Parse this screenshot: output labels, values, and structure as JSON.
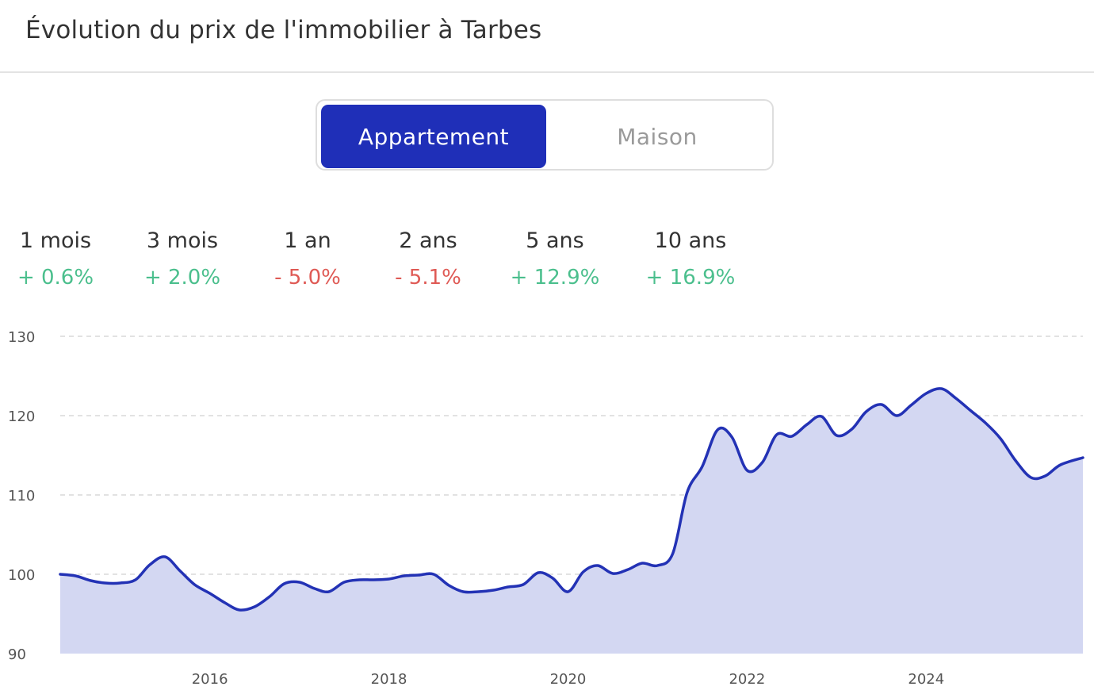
{
  "title": "Évolution du prix de l'immobilier à Tarbes",
  "toggle": {
    "active": "Appartement",
    "inactive": "Maison"
  },
  "stats": [
    {
      "label": "1 mois",
      "value": "+ 0.6%",
      "trend": "positive"
    },
    {
      "label": "3 mois",
      "value": "+ 2.0%",
      "trend": "positive"
    },
    {
      "label": "1 an",
      "value": "- 5.0%",
      "trend": "negative"
    },
    {
      "label": "2 ans",
      "value": "- 5.1%",
      "trend": "negative"
    },
    {
      "label": "5 ans",
      "value": "+ 12.9%",
      "trend": "positive"
    },
    {
      "label": "10 ans",
      "value": "+ 16.9%",
      "trend": "positive"
    }
  ],
  "colors": {
    "accent": "#1f2fb8",
    "line": "#2332b5",
    "fill": "#d3d7f2",
    "positive": "#4bbf8d",
    "negative": "#df5a55"
  },
  "chart_data": {
    "type": "area",
    "title": "",
    "xlabel": "",
    "ylabel": "",
    "ylim": [
      90,
      130
    ],
    "yticks": [
      90,
      100,
      110,
      120,
      130
    ],
    "xlim": [
      2014.33,
      2025.75
    ],
    "xticks": [
      2016,
      2018,
      2020,
      2022,
      2024
    ],
    "grid": true,
    "series": [
      {
        "x": [
          2014.33,
          2014.5,
          2014.67,
          2014.83,
          2015.0,
          2015.17,
          2015.33,
          2015.5,
          2015.67,
          2015.83,
          2016.0,
          2016.17,
          2016.33,
          2016.5,
          2016.67,
          2016.83,
          2017.0,
          2017.17,
          2017.33,
          2017.5,
          2017.67,
          2017.83,
          2018.0,
          2018.17,
          2018.33,
          2018.5,
          2018.67,
          2018.83,
          2019.0,
          2019.17,
          2019.33,
          2019.5,
          2019.67,
          2019.83,
          2020.0,
          2020.17,
          2020.33,
          2020.5,
          2020.67,
          2020.83,
          2021.0,
          2021.17,
          2021.33,
          2021.5,
          2021.67,
          2021.83,
          2022.0,
          2022.17,
          2022.33,
          2022.5,
          2022.67,
          2022.83,
          2023.0,
          2023.17,
          2023.33,
          2023.5,
          2023.67,
          2023.83,
          2024.0,
          2024.17,
          2024.33,
          2024.5,
          2024.67,
          2024.83,
          2025.0,
          2025.17,
          2025.33,
          2025.5,
          2025.75
        ],
        "y": [
          100,
          99.8,
          99.2,
          98.9,
          98.9,
          99.3,
          101.2,
          102.2,
          100.4,
          98.7,
          97.6,
          96.4,
          95.5,
          95.9,
          97.2,
          98.8,
          99.0,
          98.2,
          97.8,
          99.0,
          99.3,
          99.3,
          99.4,
          99.8,
          99.9,
          100.0,
          98.6,
          97.8,
          97.8,
          98.0,
          98.4,
          98.7,
          100.2,
          99.5,
          97.8,
          100.3,
          101.1,
          100.1,
          100.6,
          101.4,
          101.1,
          102.6,
          110.3,
          113.6,
          118.2,
          117.3,
          113.1,
          114.1,
          117.6,
          117.4,
          118.9,
          119.9,
          117.5,
          118.3,
          120.5,
          121.4,
          120.0,
          121.3,
          122.8,
          123.4,
          122.2,
          120.6,
          119.0,
          117.1,
          114.3,
          112.2,
          112.4,
          113.8,
          114.7
        ]
      }
    ]
  }
}
